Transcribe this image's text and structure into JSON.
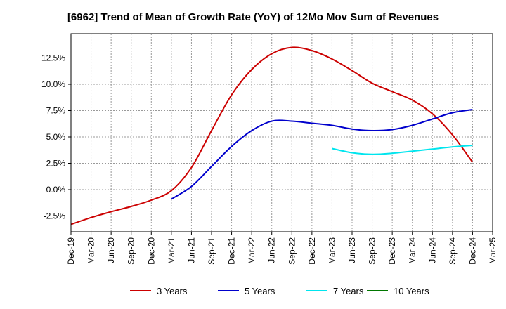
{
  "chart_data": {
    "type": "line",
    "title": "[6962]  Trend of Mean of Growth Rate (YoY) of 12Mo Mov Sum of Revenues",
    "xlabel": "",
    "ylabel": "",
    "x_ticks": [
      "Dec-19",
      "Mar-20",
      "Jun-20",
      "Sep-20",
      "Dec-20",
      "Mar-21",
      "Jun-21",
      "Sep-21",
      "Dec-21",
      "Mar-22",
      "Jun-22",
      "Sep-22",
      "Dec-22",
      "Mar-23",
      "Jun-23",
      "Sep-23",
      "Dec-23",
      "Mar-24",
      "Jun-24",
      "Sep-24",
      "Dec-24",
      "Mar-25"
    ],
    "y_ticks": [
      -2.5,
      0.0,
      2.5,
      5.0,
      7.5,
      10.0,
      12.5
    ],
    "y_tick_labels": [
      "-2.5%",
      "0.0%",
      "2.5%",
      "5.0%",
      "7.5%",
      "10.0%",
      "12.5%"
    ],
    "ylim": [
      -4.0,
      14.8
    ],
    "xlim": [
      0,
      21
    ],
    "grid": true,
    "legend_position": "bottom",
    "series": [
      {
        "name": "3 Years",
        "color": "#cc0000",
        "x": [
          0,
          1,
          2,
          3,
          4,
          5,
          6,
          7,
          8,
          9,
          10,
          11,
          12,
          13,
          14,
          15,
          16,
          17,
          18,
          19,
          20
        ],
        "values": [
          -3.3,
          -2.65,
          -2.1,
          -1.6,
          -1.0,
          -0.1,
          2.1,
          5.6,
          9.0,
          11.4,
          12.9,
          13.5,
          13.2,
          12.4,
          11.3,
          10.1,
          9.3,
          8.5,
          7.2,
          5.2,
          2.6
        ]
      },
      {
        "name": "5 Years",
        "color": "#0000cc",
        "x": [
          5,
          6,
          7,
          8,
          9,
          10,
          11,
          12,
          13,
          14,
          15,
          16,
          17,
          18,
          19,
          20
        ],
        "values": [
          -0.9,
          0.3,
          2.2,
          4.1,
          5.6,
          6.5,
          6.5,
          6.3,
          6.1,
          5.75,
          5.6,
          5.7,
          6.1,
          6.7,
          7.3,
          7.6
        ]
      },
      {
        "name": "7 Years",
        "color": "#00e5ee",
        "x": [
          13,
          14,
          15,
          16,
          17,
          18,
          19,
          20
        ],
        "values": [
          3.9,
          3.5,
          3.35,
          3.45,
          3.65,
          3.85,
          4.05,
          4.2
        ]
      },
      {
        "name": "10 Years",
        "color": "#007700",
        "x": [],
        "values": []
      }
    ]
  }
}
